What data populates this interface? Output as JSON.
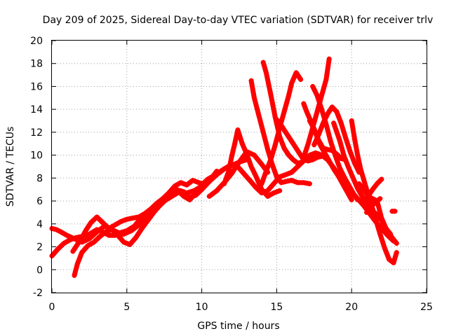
{
  "chart_data": {
    "type": "scatter",
    "title": "Day 209 of 2025, Sidereal Day-to-day VTEC variation (SDTVAR) for receiver trlv",
    "xlabel": "GPS time / hours",
    "ylabel": "SDTVAR / TECUs",
    "xlim": [
      0,
      25
    ],
    "ylim": [
      -2,
      20
    ],
    "xticks": [
      0,
      5,
      10,
      15,
      20,
      25
    ],
    "yticks": [
      -2,
      0,
      2,
      4,
      6,
      8,
      10,
      12,
      14,
      16,
      18,
      20
    ],
    "grid": true,
    "marker": "+",
    "color": "#ff0000",
    "series": [
      {
        "x": [
          0.0,
          0.3,
          0.6,
          1.0,
          1.5,
          2.0,
          2.5,
          3.0,
          3.5,
          4.0,
          4.5,
          5.0,
          5.5,
          6.0,
          6.5,
          7.0,
          7.5,
          8.0,
          8.5,
          9.0,
          9.5,
          10.0,
          10.5,
          11.0,
          11.5,
          12.0,
          12.5,
          13.0
        ],
        "y": [
          3.6,
          3.5,
          3.3,
          3.0,
          2.7,
          2.4,
          2.7,
          3.3,
          3.8,
          3.5,
          3.2,
          3.4,
          3.8,
          4.6,
          5.1,
          5.6,
          6.0,
          6.4,
          6.8,
          6.7,
          6.9,
          7.3,
          7.8,
          8.4,
          8.8,
          9.1,
          9.4,
          9.6
        ]
      },
      {
        "x": [
          0.0,
          0.4,
          0.8,
          1.2,
          1.6,
          2.0,
          2.5,
          3.0,
          3.4,
          3.8,
          4.2,
          4.8,
          5.3,
          5.8,
          6.3,
          6.8,
          7.3,
          7.8,
          8.3,
          8.8,
          9.2,
          9.6,
          10.0,
          10.5,
          11.0,
          11.5,
          12.0
        ],
        "y": [
          1.2,
          1.8,
          2.3,
          2.6,
          2.8,
          2.9,
          3.1,
          3.5,
          3.3,
          3.0,
          3.0,
          3.1,
          3.4,
          3.9,
          4.5,
          5.3,
          5.9,
          6.5,
          7.0,
          6.8,
          6.3,
          6.5,
          7.0,
          7.7,
          8.3,
          8.8,
          9.2
        ]
      },
      {
        "x": [
          1.5,
          1.7,
          2.0,
          2.4,
          2.8,
          3.2,
          3.6,
          4.0,
          4.4,
          4.8,
          5.2,
          5.6,
          6.0,
          6.4,
          6.8,
          7.2,
          7.6,
          8.0,
          8.4,
          8.8,
          9.2,
          9.6,
          10.0,
          10.4,
          10.8,
          11.2
        ],
        "y": [
          -0.5,
          0.5,
          1.5,
          2.1,
          2.4,
          2.9,
          3.3,
          3.5,
          3.0,
          2.4,
          2.2,
          2.8,
          3.6,
          4.3,
          5.0,
          5.6,
          6.1,
          6.6,
          6.9,
          6.4,
          6.1,
          6.7,
          7.4,
          7.9,
          8.2,
          8.5
        ]
      },
      {
        "x": [
          1.4,
          1.7,
          2.0,
          2.3,
          2.6,
          3.0,
          3.4,
          3.8,
          4.2,
          4.6,
          5.0,
          5.4,
          5.8,
          6.2,
          6.6,
          7.0,
          7.4,
          7.8,
          8.2,
          8.6,
          9.0,
          9.4,
          9.8,
          10.2,
          10.6,
          11.0
        ],
        "y": [
          1.6,
          2.2,
          2.8,
          3.5,
          4.1,
          4.6,
          4.1,
          3.6,
          3.9,
          4.2,
          4.4,
          4.5,
          4.6,
          4.9,
          5.3,
          5.8,
          6.2,
          6.7,
          7.3,
          7.6,
          7.4,
          7.8,
          7.6,
          7.4,
          7.9,
          8.6
        ]
      },
      {
        "x": [
          12.0,
          12.4,
          12.8,
          13.2,
          13.6,
          14.0,
          14.4,
          14.8,
          15.2,
          15.6,
          16.0,
          16.4,
          16.8,
          17.2,
          17.6,
          18.0,
          18.4,
          18.8,
          19.2,
          19.6,
          20.0,
          20.4,
          20.8,
          21.2,
          21.6,
          22.0,
          22.4,
          22.8
        ],
        "y": [
          9.2,
          9.0,
          8.4,
          7.8,
          7.2,
          6.7,
          6.9,
          7.5,
          8.1,
          8.3,
          8.5,
          9.0,
          9.5,
          10.0,
          10.2,
          10.0,
          9.6,
          8.9,
          8.1,
          7.4,
          6.8,
          6.2,
          5.6,
          4.9,
          4.2,
          3.6,
          3.0,
          2.5
        ]
      },
      {
        "x": [
          10.5,
          11.0,
          11.5,
          12.0,
          12.5,
          13.0,
          13.5,
          14.0,
          14.4
        ],
        "y": [
          6.4,
          6.9,
          7.6,
          8.4,
          9.4,
          10.3,
          10.0,
          9.2,
          8.5
        ]
      },
      {
        "x": [
          11.5,
          11.8,
          12.0,
          12.2,
          12.4,
          12.7,
          13.0,
          13.3,
          13.6,
          14.0,
          14.4,
          14.8,
          15.2
        ],
        "y": [
          7.5,
          8.6,
          9.9,
          11.0,
          12.2,
          11.0,
          10.1,
          9.0,
          8.2,
          7.0,
          6.4,
          6.7,
          6.9
        ]
      },
      {
        "x": [
          13.3,
          13.5,
          13.8,
          14.1,
          14.4,
          14.7,
          15.0,
          15.3,
          15.6,
          16.0,
          16.4,
          16.8,
          17.2
        ],
        "y": [
          16.5,
          15.0,
          13.5,
          12.0,
          10.5,
          9.2,
          8.1,
          7.6,
          7.7,
          7.8,
          7.6,
          7.6,
          7.5
        ]
      },
      {
        "x": [
          14.1,
          14.3,
          14.6,
          14.9,
          15.2,
          15.5,
          15.8,
          16.1,
          16.4,
          16.7,
          17.0,
          17.4,
          17.8
        ],
        "y": [
          18.1,
          17.2,
          15.3,
          13.3,
          11.6,
          10.6,
          10.0,
          9.6,
          9.3,
          9.4,
          9.7,
          9.9,
          10.1
        ]
      },
      {
        "x": [
          14.0,
          14.3,
          14.6,
          14.9,
          15.2,
          15.5,
          15.8,
          16.0,
          16.3,
          16.6
        ],
        "y": [
          7.5,
          8.6,
          9.6,
          10.9,
          12.4,
          13.8,
          15.2,
          16.3,
          17.2,
          16.6
        ]
      },
      {
        "x": [
          15.0,
          15.3,
          15.6,
          15.9,
          16.2,
          16.5,
          16.8,
          17.1,
          17.4,
          17.7,
          18.0
        ],
        "y": [
          13.1,
          12.6,
          12.0,
          11.4,
          10.8,
          10.2,
          9.6,
          9.5,
          9.6,
          9.8,
          9.9
        ]
      },
      {
        "x": [
          16.8,
          17.0,
          17.3,
          17.6,
          17.9,
          18.2,
          18.5,
          18.8,
          19.1,
          19.4,
          19.7,
          20.0
        ],
        "y": [
          14.5,
          13.8,
          12.9,
          11.9,
          10.9,
          10.2,
          9.5,
          8.8,
          8.2,
          7.5,
          6.8,
          6.1
        ]
      },
      {
        "x": [
          17.5,
          17.8,
          18.1,
          18.4,
          18.7,
          19.0,
          19.3,
          19.6,
          19.9,
          20.2,
          20.5
        ],
        "y": [
          10.9,
          11.8,
          12.8,
          13.6,
          14.2,
          13.8,
          12.8,
          11.5,
          10.3,
          9.3,
          8.5
        ]
      },
      {
        "x": [
          17.2,
          17.5,
          17.8,
          18.1,
          18.4,
          18.7,
          19.0,
          19.3,
          19.6
        ],
        "y": [
          13.0,
          12.3,
          11.3,
          10.6,
          10.5,
          10.4,
          10.1,
          9.7,
          9.6
        ]
      },
      {
        "x": [
          18.5,
          18.3,
          18.0,
          17.7,
          17.4,
          17.1,
          16.8
        ],
        "y": [
          18.4,
          16.6,
          15.2,
          13.8,
          12.4,
          11.0,
          9.8
        ]
      },
      {
        "x": [
          17.4,
          17.7,
          18.0,
          18.3,
          18.6,
          18.9,
          19.2,
          19.5,
          19.8,
          20.1,
          20.4
        ],
        "y": [
          16.0,
          15.2,
          14.0,
          12.7,
          11.2,
          10.0,
          8.9,
          8.1,
          7.4,
          6.7,
          6.1
        ]
      },
      {
        "x": [
          18.8,
          19.2,
          19.5,
          19.8,
          20.1,
          20.4,
          20.7,
          21.0,
          21.3,
          21.6,
          22.0,
          22.3,
          22.7,
          23.0
        ],
        "y": [
          12.8,
          11.3,
          9.9,
          8.9,
          8.0,
          7.1,
          6.4,
          5.8,
          5.3,
          4.9,
          4.3,
          3.6,
          2.8,
          2.3
        ]
      },
      {
        "x": [
          20.0,
          20.2,
          20.4,
          20.6,
          20.8,
          21.0,
          21.3,
          21.6,
          21.9,
          22.2,
          22.5,
          22.8,
          23.0
        ],
        "y": [
          13.0,
          11.4,
          10.0,
          8.8,
          7.9,
          7.0,
          5.8,
          4.4,
          3.1,
          1.9,
          0.9,
          0.6,
          1.5
        ]
      },
      {
        "x": [
          20.5,
          20.8,
          21.1,
          21.4,
          21.7,
          22.0,
          22.3,
          22.6
        ],
        "y": [
          7.5,
          7.0,
          6.4,
          6.2,
          6.0,
          4.5,
          3.6,
          3.1
        ]
      },
      {
        "x": [
          21.0,
          21.3,
          21.6,
          21.9
        ],
        "y": [
          5.0,
          5.5,
          5.9,
          6.2
        ]
      },
      {
        "x": [
          20.8,
          21.1,
          21.4,
          21.7,
          22.0
        ],
        "y": [
          6.0,
          6.4,
          7.0,
          7.5,
          7.9
        ]
      },
      {
        "x": [
          22.7,
          22.9
        ],
        "y": [
          5.1,
          5.1
        ]
      }
    ]
  }
}
